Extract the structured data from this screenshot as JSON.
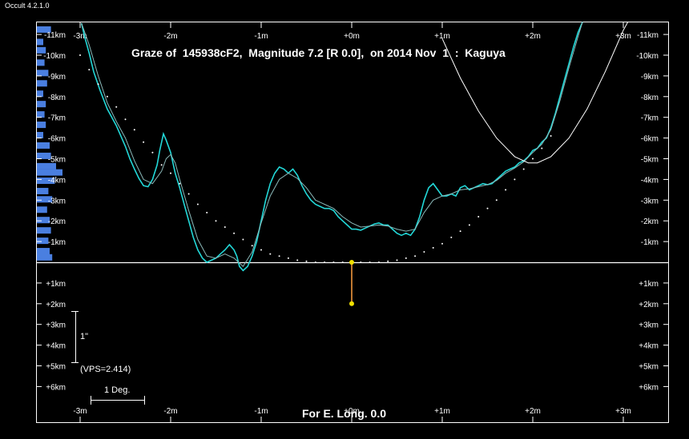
{
  "window": {
    "title": "Occult 4.2.1.0"
  },
  "chart_data": {
    "type": "line",
    "title": "Graze of  145938cF2,  Magnitude 7.2 [R 0.0],  on 2014 Nov  1  :  Kaguya",
    "footer": "For E. Long. 0.0",
    "x_ticks": [
      "-3m",
      "-2m",
      "-1m",
      "+0m",
      "+1m",
      "+2m",
      "+3m"
    ],
    "y_ticks_north": [
      "-11km",
      "-10km",
      "-9km",
      "-8km",
      "-7km",
      "-6km",
      "-5km",
      "-4km",
      "-3km",
      "-2km",
      "-1km"
    ],
    "y_ticks_south": [
      "+1km",
      "+2km",
      "+3km",
      "+4km",
      "+5km",
      "+6km"
    ],
    "xlim": [
      -3,
      3
    ],
    "ylim_km": [
      -11.5,
      7.8
    ],
    "colors": {
      "profile": "#22d8d8",
      "histogram": "#4a7fe0",
      "limb_curve": "#ffffff",
      "marker": "#f0e000",
      "marker_line": "#ffa040"
    },
    "series": [
      {
        "kind": "profile",
        "points": [
          [
            -2.985,
            -11.55
          ],
          [
            -2.95,
            -10.9
          ],
          [
            -2.9,
            -10.1
          ],
          [
            -2.85,
            -9.2
          ],
          [
            -2.78,
            -8.3
          ],
          [
            -2.7,
            -7.4
          ],
          [
            -2.6,
            -6.6
          ],
          [
            -2.5,
            -5.6
          ],
          [
            -2.45,
            -5.0
          ],
          [
            -2.4,
            -4.5
          ],
          [
            -2.35,
            -4.05
          ],
          [
            -2.3,
            -3.7
          ],
          [
            -2.25,
            -3.65
          ],
          [
            -2.2,
            -4.0
          ],
          [
            -2.15,
            -4.7
          ],
          [
            -2.12,
            -5.4
          ],
          [
            -2.08,
            -6.2
          ],
          [
            -2.05,
            -5.9
          ],
          [
            -2.0,
            -5.3
          ],
          [
            -1.95,
            -4.3
          ],
          [
            -1.9,
            -3.6
          ],
          [
            -1.85,
            -2.8
          ],
          [
            -1.8,
            -2.0
          ],
          [
            -1.75,
            -1.2
          ],
          [
            -1.7,
            -0.6
          ],
          [
            -1.65,
            -0.2
          ],
          [
            -1.6,
            0.0
          ],
          [
            -1.55,
            -0.1
          ],
          [
            -1.5,
            -0.2
          ],
          [
            -1.45,
            -0.4
          ],
          [
            -1.4,
            -0.6
          ],
          [
            -1.35,
            -0.85
          ],
          [
            -1.3,
            -0.6
          ],
          [
            -1.27,
            -0.3
          ],
          [
            -1.24,
            0.2
          ],
          [
            -1.2,
            0.4
          ],
          [
            -1.15,
            0.2
          ],
          [
            -1.1,
            -0.3
          ],
          [
            -1.05,
            -1.0
          ],
          [
            -1.0,
            -2.0
          ],
          [
            -0.95,
            -3.0
          ],
          [
            -0.9,
            -3.8
          ],
          [
            -0.85,
            -4.3
          ],
          [
            -0.8,
            -4.6
          ],
          [
            -0.75,
            -4.5
          ],
          [
            -0.7,
            -4.3
          ],
          [
            -0.65,
            -4.5
          ],
          [
            -0.6,
            -4.2
          ],
          [
            -0.55,
            -3.7
          ],
          [
            -0.5,
            -3.3
          ],
          [
            -0.45,
            -3.0
          ],
          [
            -0.4,
            -2.8
          ],
          [
            -0.35,
            -2.7
          ],
          [
            -0.3,
            -2.6
          ],
          [
            -0.25,
            -2.6
          ],
          [
            -0.2,
            -2.5
          ],
          [
            -0.15,
            -2.2
          ],
          [
            -0.1,
            -2.0
          ],
          [
            -0.05,
            -1.8
          ],
          [
            0.0,
            -1.6
          ],
          [
            0.05,
            -1.6
          ],
          [
            0.1,
            -1.55
          ],
          [
            0.15,
            -1.65
          ],
          [
            0.2,
            -1.75
          ],
          [
            0.25,
            -1.85
          ],
          [
            0.3,
            -1.9
          ],
          [
            0.35,
            -1.8
          ],
          [
            0.4,
            -1.8
          ],
          [
            0.45,
            -1.6
          ],
          [
            0.5,
            -1.4
          ],
          [
            0.55,
            -1.3
          ],
          [
            0.6,
            -1.4
          ],
          [
            0.65,
            -1.3
          ],
          [
            0.7,
            -1.6
          ],
          [
            0.75,
            -2.2
          ],
          [
            0.8,
            -3.0
          ],
          [
            0.85,
            -3.6
          ],
          [
            0.9,
            -3.8
          ],
          [
            0.95,
            -3.5
          ],
          [
            1.0,
            -3.2
          ],
          [
            1.05,
            -3.2
          ],
          [
            1.1,
            -3.3
          ],
          [
            1.15,
            -3.2
          ],
          [
            1.2,
            -3.6
          ],
          [
            1.25,
            -3.7
          ],
          [
            1.3,
            -3.5
          ],
          [
            1.35,
            -3.6
          ],
          [
            1.4,
            -3.7
          ],
          [
            1.45,
            -3.8
          ],
          [
            1.5,
            -3.75
          ],
          [
            1.55,
            -3.8
          ],
          [
            1.6,
            -4.0
          ],
          [
            1.65,
            -4.2
          ],
          [
            1.7,
            -4.4
          ],
          [
            1.75,
            -4.5
          ],
          [
            1.8,
            -4.6
          ],
          [
            1.85,
            -4.8
          ],
          [
            1.9,
            -4.9
          ],
          [
            1.95,
            -5.1
          ],
          [
            2.0,
            -5.4
          ],
          [
            2.05,
            -5.5
          ],
          [
            2.1,
            -5.8
          ],
          [
            2.15,
            -6.0
          ],
          [
            2.2,
            -6.5
          ],
          [
            2.25,
            -7.2
          ],
          [
            2.3,
            -8.0
          ],
          [
            2.35,
            -8.8
          ],
          [
            2.4,
            -9.6
          ],
          [
            2.45,
            -10.4
          ],
          [
            2.5,
            -11.1
          ],
          [
            2.55,
            -11.6
          ]
        ]
      },
      {
        "kind": "smoothed-profile",
        "points": [
          [
            -2.985,
            -11.55
          ],
          [
            -2.9,
            -10.5
          ],
          [
            -2.8,
            -9.0
          ],
          [
            -2.7,
            -7.7
          ],
          [
            -2.6,
            -6.8
          ],
          [
            -2.5,
            -6.0
          ],
          [
            -2.4,
            -4.9
          ],
          [
            -2.3,
            -4.0
          ],
          [
            -2.2,
            -3.8
          ],
          [
            -2.1,
            -4.4
          ],
          [
            -2.05,
            -5.0
          ],
          [
            -2.0,
            -5.2
          ],
          [
            -1.95,
            -4.8
          ],
          [
            -1.9,
            -4.0
          ],
          [
            -1.8,
            -2.5
          ],
          [
            -1.7,
            -1.1
          ],
          [
            -1.6,
            -0.3
          ],
          [
            -1.5,
            -0.2
          ],
          [
            -1.4,
            -0.4
          ],
          [
            -1.35,
            -0.3
          ],
          [
            -1.3,
            -0.2
          ],
          [
            -1.2,
            0.2
          ],
          [
            -1.1,
            -0.5
          ],
          [
            -1.0,
            -1.9
          ],
          [
            -0.9,
            -3.2
          ],
          [
            -0.8,
            -4.0
          ],
          [
            -0.7,
            -4.3
          ],
          [
            -0.6,
            -4.05
          ],
          [
            -0.5,
            -3.6
          ],
          [
            -0.4,
            -3.0
          ],
          [
            -0.3,
            -2.8
          ],
          [
            -0.2,
            -2.6
          ],
          [
            -0.1,
            -2.2
          ],
          [
            0.0,
            -1.9
          ],
          [
            0.1,
            -1.7
          ],
          [
            0.2,
            -1.75
          ],
          [
            0.3,
            -1.8
          ],
          [
            0.4,
            -1.75
          ],
          [
            0.5,
            -1.6
          ],
          [
            0.6,
            -1.5
          ],
          [
            0.7,
            -1.6
          ],
          [
            0.8,
            -2.4
          ],
          [
            0.9,
            -3.0
          ],
          [
            1.0,
            -3.2
          ],
          [
            1.1,
            -3.3
          ],
          [
            1.2,
            -3.5
          ],
          [
            1.3,
            -3.55
          ],
          [
            1.4,
            -3.65
          ],
          [
            1.5,
            -3.75
          ],
          [
            1.6,
            -3.95
          ],
          [
            1.7,
            -4.3
          ],
          [
            1.8,
            -4.55
          ],
          [
            1.9,
            -4.85
          ],
          [
            2.0,
            -5.3
          ],
          [
            2.1,
            -5.7
          ],
          [
            2.2,
            -6.4
          ],
          [
            2.3,
            -7.8
          ],
          [
            2.4,
            -9.4
          ],
          [
            2.5,
            -10.9
          ],
          [
            2.55,
            -11.6
          ]
        ]
      },
      {
        "kind": "limb-curve",
        "points": [
          [
            1.0,
            -10.8
          ],
          [
            1.2,
            -8.9
          ],
          [
            1.4,
            -7.3
          ],
          [
            1.6,
            -6.0
          ],
          [
            1.8,
            -5.1
          ],
          [
            1.95,
            -4.8
          ],
          [
            2.05,
            -4.8
          ],
          [
            2.2,
            -5.1
          ],
          [
            2.4,
            -6.0
          ],
          [
            2.6,
            -7.4
          ],
          [
            2.8,
            -9.2
          ],
          [
            3.0,
            -11.2
          ],
          [
            3.05,
            -11.6
          ]
        ]
      },
      {
        "kind": "mean-limb-dots",
        "points": [
          [
            -3.0,
            -10.0
          ],
          [
            -2.9,
            -9.3
          ],
          [
            -2.8,
            -8.6
          ],
          [
            -2.7,
            -8.0
          ],
          [
            -2.6,
            -7.5
          ],
          [
            -2.5,
            -6.9
          ],
          [
            -2.4,
            -6.4
          ],
          [
            -2.3,
            -5.8
          ],
          [
            -2.2,
            -5.3
          ],
          [
            -2.1,
            -4.7
          ],
          [
            -2.0,
            -4.3
          ],
          [
            -1.9,
            -3.8
          ],
          [
            -1.8,
            -3.3
          ],
          [
            -1.7,
            -2.8
          ],
          [
            -1.6,
            -2.4
          ],
          [
            -1.5,
            -2.0
          ],
          [
            -1.4,
            -1.7
          ],
          [
            -1.3,
            -1.4
          ],
          [
            -1.2,
            -1.1
          ],
          [
            -1.1,
            -0.8
          ],
          [
            -1.0,
            -0.6
          ],
          [
            -0.9,
            -0.4
          ],
          [
            -0.8,
            -0.3
          ],
          [
            -0.7,
            -0.2
          ],
          [
            -0.6,
            -0.1
          ],
          [
            -0.5,
            -0.05
          ],
          [
            -0.4,
            0.0
          ],
          [
            -0.3,
            0.0
          ],
          [
            -0.2,
            0.0
          ],
          [
            -0.1,
            0.0
          ],
          [
            0.1,
            0.0
          ],
          [
            0.2,
            0.0
          ],
          [
            0.3,
            0.0
          ],
          [
            0.4,
            -0.05
          ],
          [
            0.5,
            -0.1
          ],
          [
            0.6,
            -0.2
          ],
          [
            0.7,
            -0.3
          ],
          [
            0.8,
            -0.5
          ],
          [
            0.9,
            -0.7
          ],
          [
            1.0,
            -0.9
          ],
          [
            1.1,
            -1.2
          ],
          [
            1.2,
            -1.5
          ],
          [
            1.3,
            -1.8
          ],
          [
            1.4,
            -2.2
          ],
          [
            1.5,
            -2.6
          ],
          [
            1.6,
            -3.0
          ],
          [
            1.7,
            -3.5
          ],
          [
            1.8,
            -4.0
          ],
          [
            1.9,
            -4.5
          ],
          [
            2.0,
            -5.0
          ],
          [
            2.1,
            -5.5
          ],
          [
            2.2,
            -6.1
          ]
        ]
      }
    ],
    "histogram": [
      {
        "km": -11.2,
        "value": 0.55
      },
      {
        "km": -10.6,
        "value": 0.25
      },
      {
        "km": -10.2,
        "value": 0.35
      },
      {
        "km": -9.6,
        "value": 0.3
      },
      {
        "km": -9.1,
        "value": 0.45
      },
      {
        "km": -8.6,
        "value": 0.4
      },
      {
        "km": -8.1,
        "value": 0.25
      },
      {
        "km": -7.6,
        "value": 0.35
      },
      {
        "km": -7.1,
        "value": 0.3
      },
      {
        "km": -6.6,
        "value": 0.35
      },
      {
        "km": -6.1,
        "value": 0.25
      },
      {
        "km": -5.6,
        "value": 0.5
      },
      {
        "km": -5.1,
        "value": 0.55
      },
      {
        "km": -4.6,
        "value": 0.75
      },
      {
        "km": -4.3,
        "value": 1.0
      },
      {
        "km": -3.9,
        "value": 0.7
      },
      {
        "km": -3.4,
        "value": 0.45
      },
      {
        "km": -3.0,
        "value": 0.6
      },
      {
        "km": -2.5,
        "value": 0.4
      },
      {
        "km": -2.0,
        "value": 0.5
      },
      {
        "km": -1.5,
        "value": 0.55
      },
      {
        "km": -1.0,
        "value": 0.45
      },
      {
        "km": -0.5,
        "value": 0.5
      },
      {
        "km": -0.2,
        "value": 0.6
      }
    ],
    "marker": {
      "x": 0.0,
      "y_top_km": 0.0,
      "y_bottom_km": 2.0
    }
  },
  "scale": {
    "arcsec_label": "1\"",
    "vps_label": "(VPS=2.414)",
    "deg_label": "1 Deg."
  }
}
